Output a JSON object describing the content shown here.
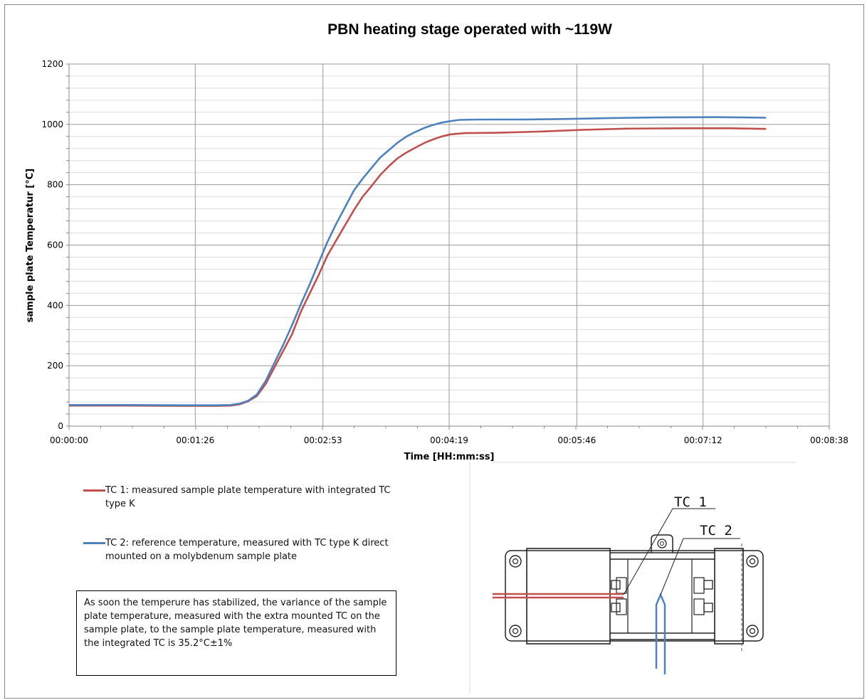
{
  "chart_data": {
    "type": "line",
    "title": "PBN heating stage operated with  ~119W",
    "xlabel": "Time [HH:mm:ss]",
    "ylabel": "sample plate Temperatur [°C]",
    "x_unit": "seconds",
    "xlim": [
      0,
      518
    ],
    "ylim": [
      0,
      1200
    ],
    "x_tick_values": [
      0,
      86,
      173,
      259,
      346,
      432,
      518
    ],
    "x_tick_labels": [
      "00:00:00",
      "00:01:26",
      "00:02:53",
      "00:04:19",
      "00:05:46",
      "00:07:12",
      "00:08:38"
    ],
    "y_ticks": [
      0,
      200,
      400,
      600,
      800,
      1000,
      1200
    ],
    "grid": true,
    "series": [
      {
        "name": "TC 1",
        "color": "#c0504d",
        "points": [
          [
            0,
            68
          ],
          [
            40,
            68
          ],
          [
            80,
            67
          ],
          [
            100,
            67
          ],
          [
            110,
            68
          ],
          [
            116,
            72
          ],
          [
            122,
            82
          ],
          [
            128,
            100
          ],
          [
            134,
            140
          ],
          [
            140,
            195
          ],
          [
            146,
            250
          ],
          [
            152,
            305
          ],
          [
            158,
            380
          ],
          [
            164,
            440
          ],
          [
            170,
            500
          ],
          [
            176,
            565
          ],
          [
            182,
            615
          ],
          [
            188,
            665
          ],
          [
            194,
            715
          ],
          [
            200,
            760
          ],
          [
            206,
            795
          ],
          [
            212,
            832
          ],
          [
            218,
            862
          ],
          [
            224,
            888
          ],
          [
            230,
            907
          ],
          [
            236,
            923
          ],
          [
            242,
            938
          ],
          [
            248,
            950
          ],
          [
            254,
            960
          ],
          [
            260,
            967
          ],
          [
            270,
            971
          ],
          [
            290,
            972
          ],
          [
            320,
            976
          ],
          [
            350,
            982
          ],
          [
            380,
            986
          ],
          [
            420,
            987
          ],
          [
            450,
            987
          ],
          [
            475,
            985
          ]
        ]
      },
      {
        "name": "TC 2",
        "color": "#4f81bd",
        "points": [
          [
            0,
            70
          ],
          [
            40,
            70
          ],
          [
            80,
            69
          ],
          [
            100,
            69
          ],
          [
            110,
            70
          ],
          [
            116,
            74
          ],
          [
            122,
            84
          ],
          [
            128,
            105
          ],
          [
            134,
            150
          ],
          [
            140,
            210
          ],
          [
            146,
            270
          ],
          [
            152,
            335
          ],
          [
            158,
            405
          ],
          [
            164,
            470
          ],
          [
            170,
            540
          ],
          [
            176,
            610
          ],
          [
            182,
            670
          ],
          [
            188,
            725
          ],
          [
            194,
            780
          ],
          [
            200,
            820
          ],
          [
            206,
            855
          ],
          [
            212,
            890
          ],
          [
            218,
            915
          ],
          [
            224,
            940
          ],
          [
            230,
            960
          ],
          [
            236,
            975
          ],
          [
            242,
            988
          ],
          [
            248,
            998
          ],
          [
            254,
            1006
          ],
          [
            260,
            1011
          ],
          [
            266,
            1015
          ],
          [
            280,
            1016
          ],
          [
            310,
            1016
          ],
          [
            340,
            1018
          ],
          [
            370,
            1021
          ],
          [
            400,
            1023
          ],
          [
            440,
            1024
          ],
          [
            460,
            1023
          ],
          [
            475,
            1022
          ]
        ]
      }
    ]
  },
  "legend": {
    "tc1_text": "TC 1: measured sample plate temperature with integrated TC type K",
    "tc2_text": "TC 2: reference temperature, measured with TC type K direct mounted on a molybdenum sample plate"
  },
  "note": {
    "text": "As soon the temperure has stabilized, the variance of the sample plate temperature, measured with the extra mounted TC on the sample plate, to the sample plate temperature, measured with the integrated TC is 35.2°C±1%"
  },
  "diagram": {
    "tc1_label": "TC  1",
    "tc2_label": "TC  2"
  }
}
